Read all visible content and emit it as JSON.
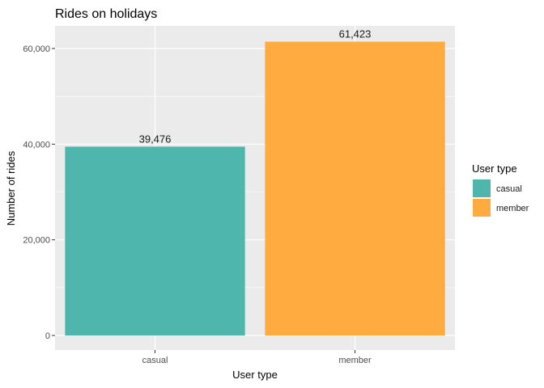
{
  "chart_data": {
    "type": "bar",
    "title": "Rides on holidays",
    "xlabel": "User type",
    "ylabel": "Number of rides",
    "categories": [
      "casual",
      "member"
    ],
    "values": [
      39476,
      61423
    ],
    "data_labels": [
      "39,476",
      "61,423"
    ],
    "colors": [
      "#4fb6ae",
      "#ffab40"
    ],
    "ylim": [
      0,
      64500
    ],
    "y_ticks": [
      0,
      20000,
      40000,
      60000
    ],
    "y_tick_labels": [
      "0",
      "20,000",
      "40,000",
      "60,000"
    ],
    "grid": true,
    "legend": {
      "title": "User type",
      "position": "right",
      "entries": [
        "casual",
        "member"
      ]
    }
  }
}
